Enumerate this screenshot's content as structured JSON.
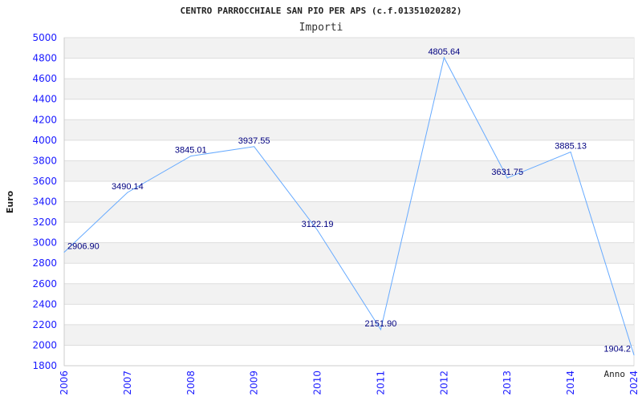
{
  "chart_data": {
    "type": "line",
    "title": "CENTRO PARROCCHIALE SAN PIO PER APS (c.f.01351020282)",
    "subtitle": "Importi",
    "xlabel": "Anno",
    "ylabel": "Euro",
    "categories": [
      "2006",
      "2007",
      "2008",
      "2009",
      "2010",
      "2011",
      "2012",
      "2013",
      "2014",
      "2024"
    ],
    "series": [
      {
        "name": "Importi",
        "values": [
          2906.9,
          3490.14,
          3845.01,
          3937.55,
          3122.19,
          2151.9,
          4805.64,
          3631.75,
          3885.13,
          1904.2
        ]
      }
    ],
    "data_labels": [
      "2906.90",
      "3490.14",
      "3845.01",
      "3937.55",
      "3122.19",
      "2151.90",
      "4805.64",
      "3631.75",
      "3885.13",
      "1904.2"
    ],
    "ylim": [
      1800,
      5000
    ],
    "yticks": [
      1800,
      2000,
      2200,
      2400,
      2600,
      2800,
      3000,
      3200,
      3400,
      3600,
      3800,
      4000,
      4200,
      4400,
      4600,
      4800,
      5000
    ],
    "grid": true,
    "colors": {
      "line": "#66aaff",
      "band": "#f2f2f2",
      "tick": "#1a1aff",
      "label": "#000080"
    }
  }
}
